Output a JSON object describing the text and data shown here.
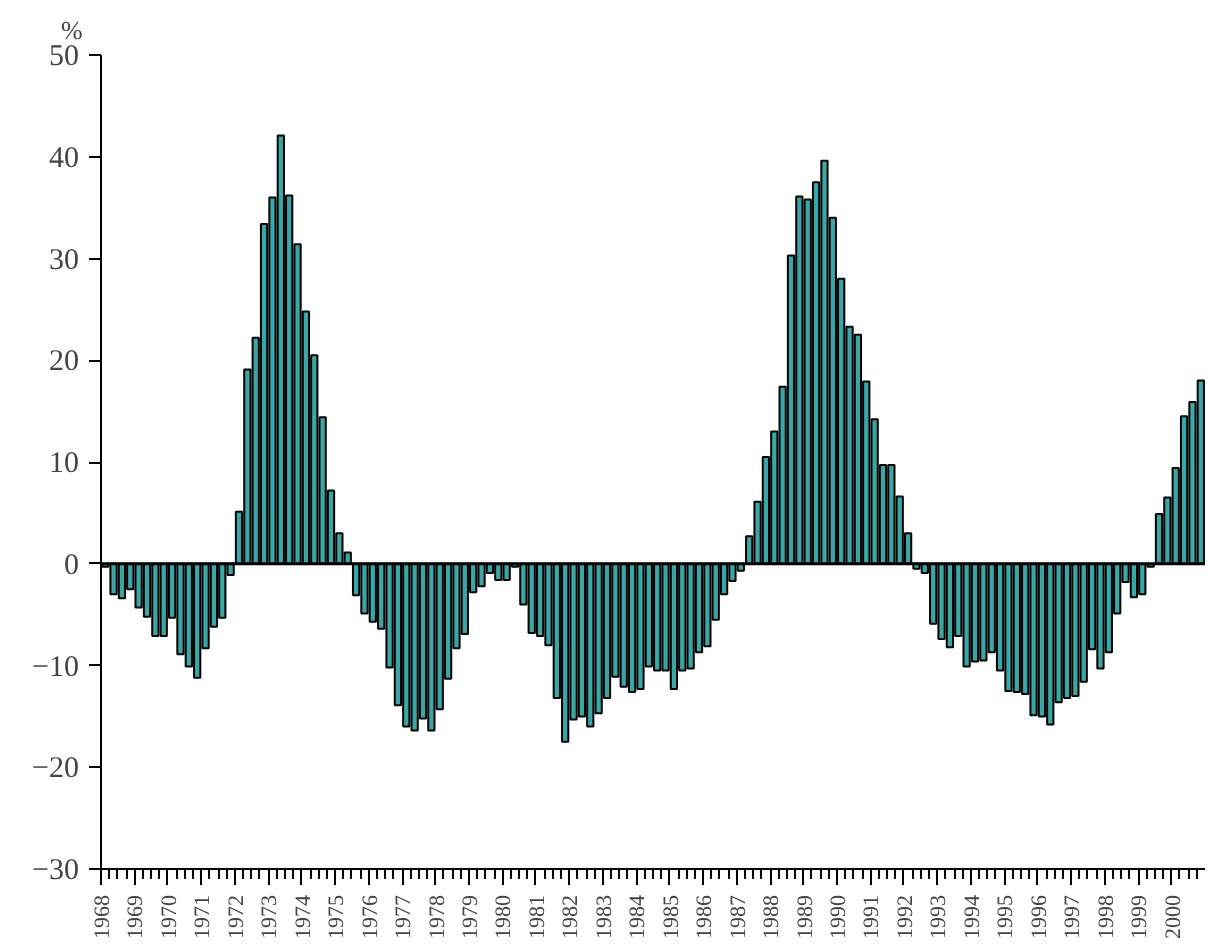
{
  "chart_data": {
    "type": "bar",
    "ylabel": "%",
    "categories": [
      "1968",
      null,
      null,
      null,
      "1969",
      null,
      null,
      null,
      "1970",
      null,
      null,
      null,
      "1971",
      null,
      null,
      null,
      "1972",
      null,
      null,
      null,
      "1973",
      null,
      null,
      null,
      "1974",
      null,
      null,
      null,
      "1975",
      null,
      null,
      null,
      "1976",
      null,
      null,
      null,
      "1977",
      null,
      null,
      null,
      "1978",
      null,
      null,
      null,
      "1979",
      null,
      null,
      null,
      "1980",
      null,
      null,
      null,
      "1981",
      null,
      null,
      null,
      "1982",
      null,
      null,
      null,
      "1983",
      null,
      null,
      null,
      "1984",
      null,
      null,
      null,
      "1985",
      null,
      null,
      null,
      "1986",
      null,
      null,
      null,
      "1987",
      null,
      null,
      null,
      "1988",
      null,
      null,
      null,
      "1989",
      null,
      null,
      null,
      "1990",
      null,
      null,
      null,
      "1991",
      null,
      null,
      null,
      "1992",
      null,
      null,
      null,
      "1993",
      null,
      null,
      null,
      "1994",
      null,
      null,
      null,
      "1995",
      null,
      null,
      null,
      "1996",
      null,
      null,
      null,
      "1997",
      null,
      null,
      null,
      "1998",
      null,
      null,
      null,
      "1999",
      null,
      null,
      null,
      "2000",
      null,
      null,
      null
    ],
    "values": [
      -0.3,
      -3.0,
      -3.4,
      -2.5,
      -4.3,
      -5.2,
      -7.1,
      -7.1,
      -5.3,
      -8.9,
      -10.1,
      -11.2,
      -8.3,
      -6.2,
      -5.3,
      -1.1,
      5.1,
      19.1,
      22.2,
      33.4,
      36.0,
      42.1,
      36.2,
      31.4,
      24.8,
      20.5,
      14.4,
      7.2,
      3.0,
      1.1,
      -3.1,
      -4.9,
      -5.7,
      -6.4,
      -10.2,
      -13.9,
      -16.0,
      -16.4,
      -15.2,
      -16.4,
      -14.3,
      -11.3,
      -8.3,
      -6.9,
      -2.8,
      -2.2,
      -0.9,
      -1.6,
      -1.6,
      -0.3,
      -4.0,
      -6.8,
      -7.1,
      -8.0,
      -13.2,
      -17.5,
      -15.3,
      -15.0,
      -16.0,
      -14.7,
      -13.2,
      -11.1,
      -12.1,
      -12.6,
      -12.3,
      -10.1,
      -10.5,
      -10.5,
      -12.3,
      -10.5,
      -10.3,
      -8.7,
      -8.1,
      -5.5,
      -3.0,
      -1.7,
      -0.7,
      2.7,
      6.1,
      10.5,
      13.0,
      17.4,
      30.3,
      36.1,
      35.8,
      37.5,
      39.6,
      34.0,
      28.0,
      23.3,
      22.5,
      17.9,
      14.2,
      9.7,
      9.7,
      6.6,
      3.0,
      -0.5,
      -0.9,
      -5.9,
      -7.4,
      -8.2,
      -7.1,
      -10.1,
      -9.6,
      -9.5,
      -8.7,
      -10.5,
      -12.5,
      -12.6,
      -12.8,
      -14.9,
      -15.0,
      -15.8,
      -13.6,
      -13.2,
      -13.0,
      -11.6,
      -8.4,
      -10.3,
      -8.7,
      -4.9,
      -1.8,
      -3.3,
      -3.0,
      -0.3,
      4.9,
      6.5,
      9.4,
      14.5,
      15.9,
      18.0
    ],
    "color": "#3aa6a6",
    "ylim": [
      -30,
      50
    ],
    "yticks": [
      -30,
      -20,
      -10,
      0,
      10,
      20,
      30,
      40,
      50
    ],
    "ref_lines": [
      {
        "axis": "y",
        "value": 0,
        "label": null
      }
    ]
  }
}
